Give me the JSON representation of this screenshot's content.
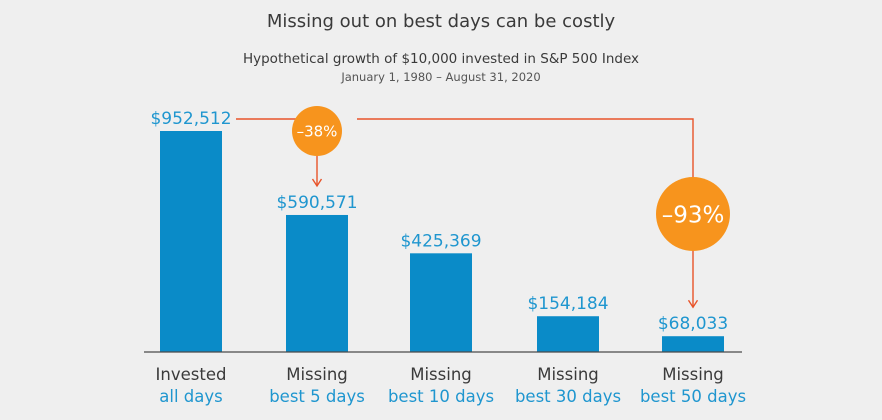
{
  "chart_data": {
    "type": "bar",
    "title": "Missing out on best days can be costly",
    "subtitle": "Hypothetical growth of $10,000 invested in S&P 500 Index",
    "date_range": "January 1, 1980 – August 31, 2020",
    "categories": [
      {
        "line1": "Invested",
        "line2": "all days"
      },
      {
        "line1": "Missing",
        "line2": "best 5 days"
      },
      {
        "line1": "Missing",
        "line2": "best 10 days"
      },
      {
        "line1": "Missing",
        "line2": "best 30 days"
      },
      {
        "line1": "Missing",
        "line2": "best 50 days"
      }
    ],
    "values": [
      952512,
      590571,
      425369,
      154184,
      68033
    ],
    "value_labels": [
      "$952,512",
      "$590,571",
      "$425,369",
      "$154,184",
      "$68,033"
    ],
    "ylim": [
      0,
      952512
    ],
    "grid": false,
    "annotations": [
      {
        "label": "–38%",
        "from_bar": 0,
        "to_bar": 1
      },
      {
        "label": "–93%",
        "from_bar": 0,
        "to_bar": 4
      }
    ],
    "colors": {
      "bar": "#0a8bc8",
      "value_text": "#1f96cf",
      "badge": "#f7941d",
      "arrow": "#e8542a",
      "baseline": "#4a4a4a"
    }
  }
}
